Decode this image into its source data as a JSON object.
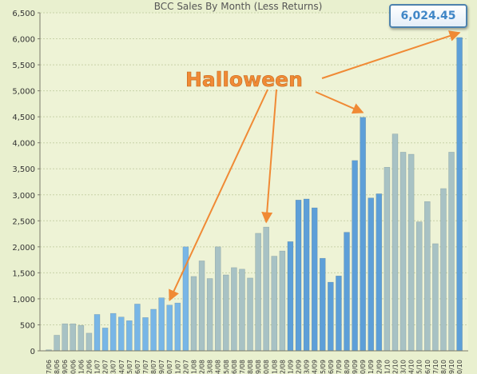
{
  "chart_data": {
    "type": "bar",
    "title": "BCC Sales By Month (Less Returns)",
    "readout": "6,024.45",
    "ylim": [
      0,
      6500
    ],
    "yticks": [
      0,
      500,
      1000,
      1500,
      2000,
      2500,
      3000,
      3500,
      4000,
      4500,
      5000,
      5500,
      6000,
      6500
    ],
    "ytick_labels": [
      "0",
      "500",
      "1,000",
      "1,500",
      "2,000",
      "2,500",
      "3,000",
      "3,500",
      "4,000",
      "4,500",
      "5,000",
      "5,500",
      "6,000",
      "6,500"
    ],
    "grid": true,
    "categories": [
      "7/06",
      "8/06",
      "9/06",
      "10/06",
      "11/06",
      "12/06",
      "1/07",
      "2/07",
      "3/07",
      "4/07",
      "5/07",
      "6/07",
      "7/07",
      "8/07",
      "9/07",
      "10/07",
      "11/07",
      "12/07",
      "1/08",
      "2/08",
      "3/08",
      "4/08",
      "5/08",
      "6/08",
      "7/08",
      "8/08",
      "9/08",
      "10/08",
      "11/08",
      "12/08",
      "1/09",
      "2/09",
      "3/09",
      "4/09",
      "5/09",
      "6/09",
      "7/09",
      "8/09",
      "9/09",
      "10/09",
      "11/09",
      "12/09",
      "1/10",
      "2/10",
      "3/10",
      "4/10",
      "5/10",
      "6/10",
      "7/10",
      "8/10",
      "9/10",
      "10/10"
    ],
    "values": [
      20,
      300,
      520,
      520,
      490,
      340,
      700,
      440,
      720,
      650,
      580,
      900,
      640,
      800,
      1020,
      880,
      920,
      2000,
      1430,
      1730,
      1390,
      2000,
      1460,
      1600,
      1570,
      1400,
      2260,
      2380,
      1820,
      1920,
      2100,
      2900,
      2920,
      2750,
      1780,
      1320,
      1440,
      2280,
      3660,
      4490,
      2940,
      3020,
      3530,
      4170,
      3820,
      3780,
      2480,
      2870,
      2060,
      3120,
      3820,
      6024.45
    ],
    "colors": [
      "#a8c2c4",
      "#a8c2c4",
      "#a8c2c4",
      "#a8c2c4",
      "#a8c2c4",
      "#a8c2c4",
      "#78b6e6",
      "#78b6e6",
      "#78b6e6",
      "#78b6e6",
      "#78b6e6",
      "#78b6e6",
      "#78b6e6",
      "#78b6e6",
      "#78b6e6",
      "#78b6e6",
      "#78b6e6",
      "#78b6e6",
      "#a8c2c4",
      "#a8c2c4",
      "#a8c2c4",
      "#a8c2c4",
      "#a8c2c4",
      "#a8c2c4",
      "#a8c2c4",
      "#a8c2c4",
      "#a8c2c4",
      "#a8c2c4",
      "#a8c2c4",
      "#a8c2c4",
      "#5d9fd8",
      "#5d9fd8",
      "#5d9fd8",
      "#5d9fd8",
      "#5d9fd8",
      "#5d9fd8",
      "#5d9fd8",
      "#5d9fd8",
      "#5d9fd8",
      "#5d9fd8",
      "#5d9fd8",
      "#5d9fd8",
      "#a8c2c4",
      "#a8c2c4",
      "#a8c2c4",
      "#a8c2c4",
      "#a8c2c4",
      "#a8c2c4",
      "#a8c2c4",
      "#a8c2c4",
      "#a8c2c4",
      "#5d9fd8"
    ],
    "annotations": [
      {
        "text": "Halloween",
        "color": "#f08a35",
        "points_to": [
          "10/07",
          "10/08",
          "10/09",
          "10/10"
        ]
      }
    ]
  }
}
